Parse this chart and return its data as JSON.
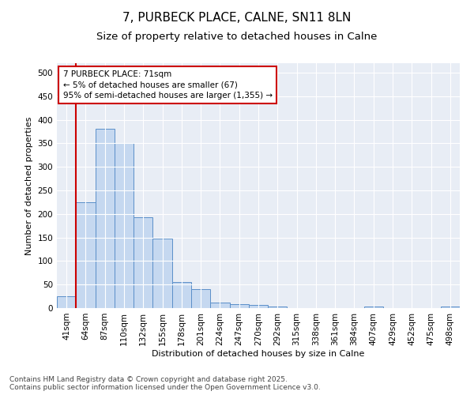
{
  "title": "7, PURBECK PLACE, CALNE, SN11 8LN",
  "subtitle": "Size of property relative to detached houses in Calne",
  "xlabel": "Distribution of detached houses by size in Calne",
  "ylabel": "Number of detached properties",
  "categories": [
    "41sqm",
    "64sqm",
    "87sqm",
    "110sqm",
    "132sqm",
    "155sqm",
    "178sqm",
    "201sqm",
    "224sqm",
    "247sqm",
    "270sqm",
    "292sqm",
    "315sqm",
    "338sqm",
    "361sqm",
    "384sqm",
    "407sqm",
    "429sqm",
    "452sqm",
    "475sqm",
    "498sqm"
  ],
  "values": [
    25,
    225,
    380,
    350,
    193,
    147,
    56,
    40,
    12,
    9,
    6,
    3,
    0,
    0,
    0,
    0,
    3,
    0,
    0,
    0,
    3
  ],
  "bar_color": "#c5d8f0",
  "bar_edge_color": "#5b8fc9",
  "vline_color": "#cc0000",
  "annotation_text": "7 PURBECK PLACE: 71sqm\n← 5% of detached houses are smaller (67)\n95% of semi-detached houses are larger (1,355) →",
  "annotation_box_facecolor": "#ffffff",
  "annotation_box_edgecolor": "#cc0000",
  "ylim": [
    0,
    520
  ],
  "yticks": [
    0,
    50,
    100,
    150,
    200,
    250,
    300,
    350,
    400,
    450,
    500
  ],
  "plot_bg_color": "#e8edf5",
  "fig_bg_color": "#ffffff",
  "grid_color": "#ffffff",
  "footer_line1": "Contains HM Land Registry data © Crown copyright and database right 2025.",
  "footer_line2": "Contains public sector information licensed under the Open Government Licence v3.0.",
  "title_fontsize": 11,
  "subtitle_fontsize": 9.5,
  "axis_label_fontsize": 8,
  "tick_fontsize": 7.5,
  "annotation_fontsize": 7.5,
  "footer_fontsize": 6.5,
  "vline_index": 1
}
